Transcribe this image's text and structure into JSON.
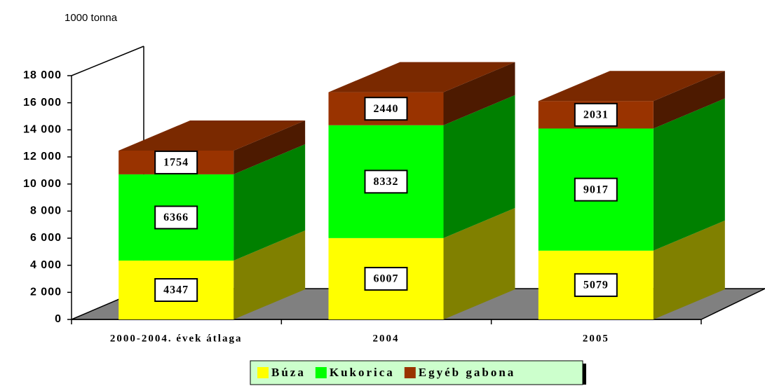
{
  "chart_data": {
    "type": "bar3d_stacked",
    "y_axis_label": "1000 tonna",
    "categories": [
      "2000-2004. évek átlaga",
      "2004",
      "2005"
    ],
    "series": [
      {
        "name": "Búza",
        "color": "#ffff00",
        "values": [
          4347,
          6007,
          5079
        ]
      },
      {
        "name": "Kukorica",
        "color": "#00ff00",
        "values": [
          6366,
          8332,
          9017
        ]
      },
      {
        "name": "Egyéb gabona",
        "color": "#993300",
        "values": [
          1754,
          2440,
          2031
        ]
      }
    ],
    "ylim": [
      0,
      18000
    ],
    "yticks": [
      0,
      {
        "value": 2000,
        "label": "2 000"
      },
      {
        "value": 4000,
        "label": "4 000"
      },
      {
        "value": 6000,
        "label": "6 000"
      },
      {
        "value": 8000,
        "label": "8 000"
      },
      {
        "value": 10000,
        "label": "10 000"
      },
      {
        "value": 12000,
        "label": "12 000"
      },
      {
        "value": 14000,
        "label": "14 000"
      },
      {
        "value": 16000,
        "label": "16 000"
      },
      {
        "value": 18000,
        "label": "18 000"
      }
    ],
    "legend": "bottom"
  }
}
